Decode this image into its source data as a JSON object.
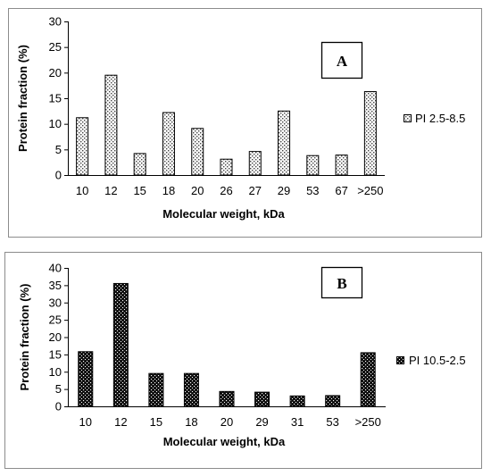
{
  "chart_data": [
    {
      "type": "bar",
      "panel_label": "A",
      "categories": [
        "10",
        "12",
        "15",
        "18",
        "20",
        "26",
        "27",
        "29",
        "53",
        "67",
        ">250"
      ],
      "series": [
        {
          "name": "PI 2.5-8.5",
          "values": [
            11.2,
            19.5,
            4.2,
            12.2,
            9.1,
            3.1,
            4.6,
            12.5,
            3.8,
            3.9,
            16.3
          ]
        }
      ],
      "title": "",
      "xlabel": "Molecular weight, kDa",
      "ylabel": "Protein fraction (%)",
      "ylim": [
        0,
        30
      ],
      "yticks": [
        "0",
        "5",
        "10",
        "15",
        "20",
        "25",
        "30"
      ],
      "grid": false,
      "legend_position": "right",
      "bar_pattern": "light-dotted"
    },
    {
      "type": "bar",
      "panel_label": "B",
      "categories": [
        "10",
        "12",
        "15",
        "18",
        "20",
        "29",
        "31",
        "53",
        ">250"
      ],
      "series": [
        {
          "name": "PI 10.5-2.5",
          "values": [
            15.8,
            35.5,
            9.5,
            9.5,
            4.3,
            4.1,
            3.0,
            3.1,
            15.5
          ]
        }
      ],
      "title": "",
      "xlabel": "Molecular weight, kDa",
      "ylabel": "Protein fraction (%)",
      "ylim": [
        0,
        40
      ],
      "yticks": [
        "0",
        "5",
        "10",
        "15",
        "20",
        "25",
        "30",
        "35",
        "40"
      ],
      "grid": false,
      "legend_position": "right",
      "bar_pattern": "dark-dotted"
    }
  ],
  "colors": {
    "frame": "#8c8c8c",
    "bar_dark": "#111111",
    "bar_light_bg": "#ffffff"
  }
}
